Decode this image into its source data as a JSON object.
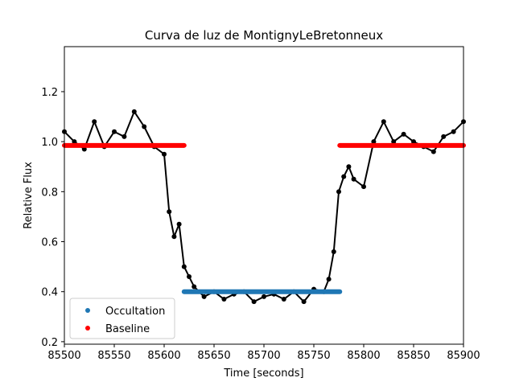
{
  "chart_data": {
    "type": "scatter",
    "title": "Curva de luz de MontignyLeBretonneux",
    "xlabel": "Time [seconds]",
    "ylabel": "Relative Flux",
    "xlim": [
      85500,
      85900
    ],
    "ylim": [
      0.19,
      1.38
    ],
    "xticks": [
      85500,
      85550,
      85600,
      85650,
      85700,
      85750,
      85800,
      85850,
      85900
    ],
    "yticks": [
      0.2,
      0.4,
      0.6,
      0.8,
      1.0,
      1.2
    ],
    "xtick_labels": [
      "85500",
      "85550",
      "85600",
      "85650",
      "85700",
      "85750",
      "85800",
      "85850",
      "85900"
    ],
    "ytick_labels": [
      "0.2",
      "0.4",
      "0.6",
      "0.8",
      "1.0",
      "1.2"
    ],
    "grid": false,
    "legend_position": "lower-left",
    "series": [
      {
        "kind": "light-curve",
        "color": "#000000",
        "x": [
          85500,
          85510,
          85520,
          85530,
          85540,
          85550,
          85560,
          85570,
          85580,
          85590,
          85600,
          85605,
          85610,
          85615,
          85620,
          85625,
          85630,
          85640,
          85650,
          85660,
          85670,
          85680,
          85690,
          85700,
          85710,
          85720,
          85730,
          85740,
          85750,
          85760,
          85765,
          85770,
          85775,
          85780,
          85785,
          85790,
          85800,
          85810,
          85820,
          85830,
          85840,
          85850,
          85860,
          85870,
          85880,
          85890,
          85900
        ],
        "y": [
          1.04,
          1.0,
          0.97,
          1.08,
          0.98,
          1.04,
          1.02,
          1.12,
          1.06,
          0.98,
          0.95,
          0.72,
          0.62,
          0.67,
          0.5,
          0.46,
          0.42,
          0.38,
          0.4,
          0.37,
          0.39,
          0.4,
          0.36,
          0.38,
          0.39,
          0.37,
          0.4,
          0.36,
          0.41,
          0.4,
          0.45,
          0.56,
          0.8,
          0.86,
          0.9,
          0.85,
          0.82,
          1.0,
          1.08,
          1.0,
          1.03,
          1.0,
          0.98,
          0.96,
          1.02,
          1.04,
          1.08
        ]
      },
      {
        "name": "Occultation",
        "color": "#1f77b4",
        "x": [
          85620,
          85776
        ],
        "y": [
          0.4,
          0.4
        ]
      },
      {
        "name": "Baseline",
        "color": "#ff0000",
        "segments": [
          {
            "x": [
              85500,
              85620
            ],
            "y": [
              0.985,
              0.985
            ]
          },
          {
            "x": [
              85776,
              85900
            ],
            "y": [
              0.985,
              0.985
            ]
          }
        ]
      }
    ]
  }
}
